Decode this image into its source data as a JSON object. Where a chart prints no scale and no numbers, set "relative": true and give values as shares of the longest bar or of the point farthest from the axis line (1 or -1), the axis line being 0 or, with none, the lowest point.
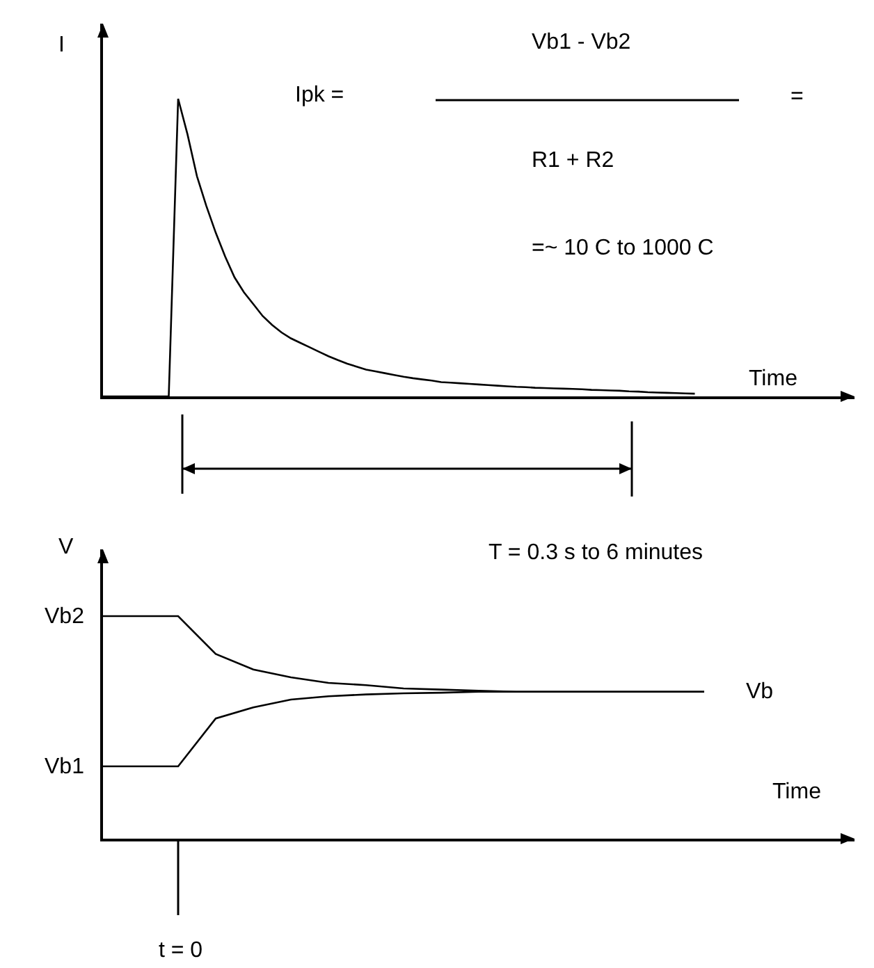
{
  "chart_data": [
    {
      "type": "line",
      "relative": true,
      "xlabel": "Time",
      "ylabel": "I",
      "categories": [
        null,
        null,
        null,
        null,
        null,
        null,
        null,
        null,
        null,
        null,
        null,
        null,
        null,
        null,
        null,
        null,
        null,
        null,
        null,
        null,
        null,
        null,
        null,
        null,
        null,
        null,
        null,
        null,
        null,
        null,
        null,
        null,
        null,
        null,
        null,
        null,
        null,
        null,
        null,
        null,
        null,
        null,
        null,
        null,
        null,
        null,
        null,
        null,
        null,
        null,
        null,
        null,
        null,
        null,
        null,
        null,
        null,
        null,
        null,
        null,
        null,
        null,
        null,
        null,
        null,
        null,
        null,
        null,
        null,
        null,
        null,
        null,
        null,
        null,
        null,
        null,
        null,
        null,
        null,
        null,
        null
      ],
      "series": [
        {
          "color": "#000000",
          "values": [
            0,
            0,
            0,
            0,
            0,
            0,
            0,
            0,
            1.0,
            0.88,
            0.74,
            0.64,
            0.55,
            0.47,
            0.4,
            0.35,
            0.31,
            0.27,
            0.24,
            0.215,
            0.195,
            0.18,
            0.165,
            0.15,
            0.135,
            0.122,
            0.11,
            0.1,
            0.09,
            0.084,
            0.078,
            0.072,
            0.066,
            0.061,
            0.057,
            0.053,
            0.048,
            0.046,
            0.044,
            0.042,
            0.04,
            0.038,
            0.036,
            0.034,
            0.032,
            0.031,
            0.029,
            0.028,
            0.027,
            0.026,
            0.025,
            0.024,
            0.022,
            0.021,
            0.02,
            0.019,
            0.017,
            0.016,
            0.014,
            0.013,
            0.012,
            0.011,
            0.01,
            0.009,
            null,
            null,
            null,
            null,
            null,
            null,
            null,
            null,
            null,
            null,
            null,
            null,
            null,
            null,
            null,
            null,
            null
          ]
        }
      ],
      "annotations": [
        "Ipk =",
        "Vb1 - Vb2",
        "R1 + R2",
        "=",
        "=~ 10 C to 1000 C"
      ]
    },
    {
      "type": "line",
      "relative": true,
      "xlabel": "Time",
      "ylabel": "V",
      "categories": [
        null,
        null,
        null,
        null,
        null,
        null,
        null,
        null,
        null,
        null,
        null,
        null,
        null,
        null,
        null,
        null,
        null,
        null,
        null,
        null,
        null
      ],
      "series": [
        {
          "color": "#000000",
          "values": [
            1.0,
            1.0,
            1.0,
            0.83,
            0.76,
            0.725,
            0.7,
            0.69,
            0.675,
            0.67,
            0.665,
            0.66,
            0.66,
            0.66,
            0.66,
            0.66,
            0.66,
            null,
            null,
            null,
            null
          ]
        },
        {
          "color": "#000000",
          "values": [
            0.325,
            0.325,
            0.325,
            0.54,
            0.59,
            0.625,
            0.64,
            0.648,
            0.653,
            0.656,
            0.66,
            0.66,
            0.66,
            0.66,
            0.66,
            0.66,
            0.66,
            null,
            null,
            null,
            null
          ]
        }
      ],
      "annotations": [
        "Vb2",
        "Vb1",
        "Vb",
        "T = 0.3 s to 6 minutes",
        "t = 0"
      ]
    }
  ]
}
